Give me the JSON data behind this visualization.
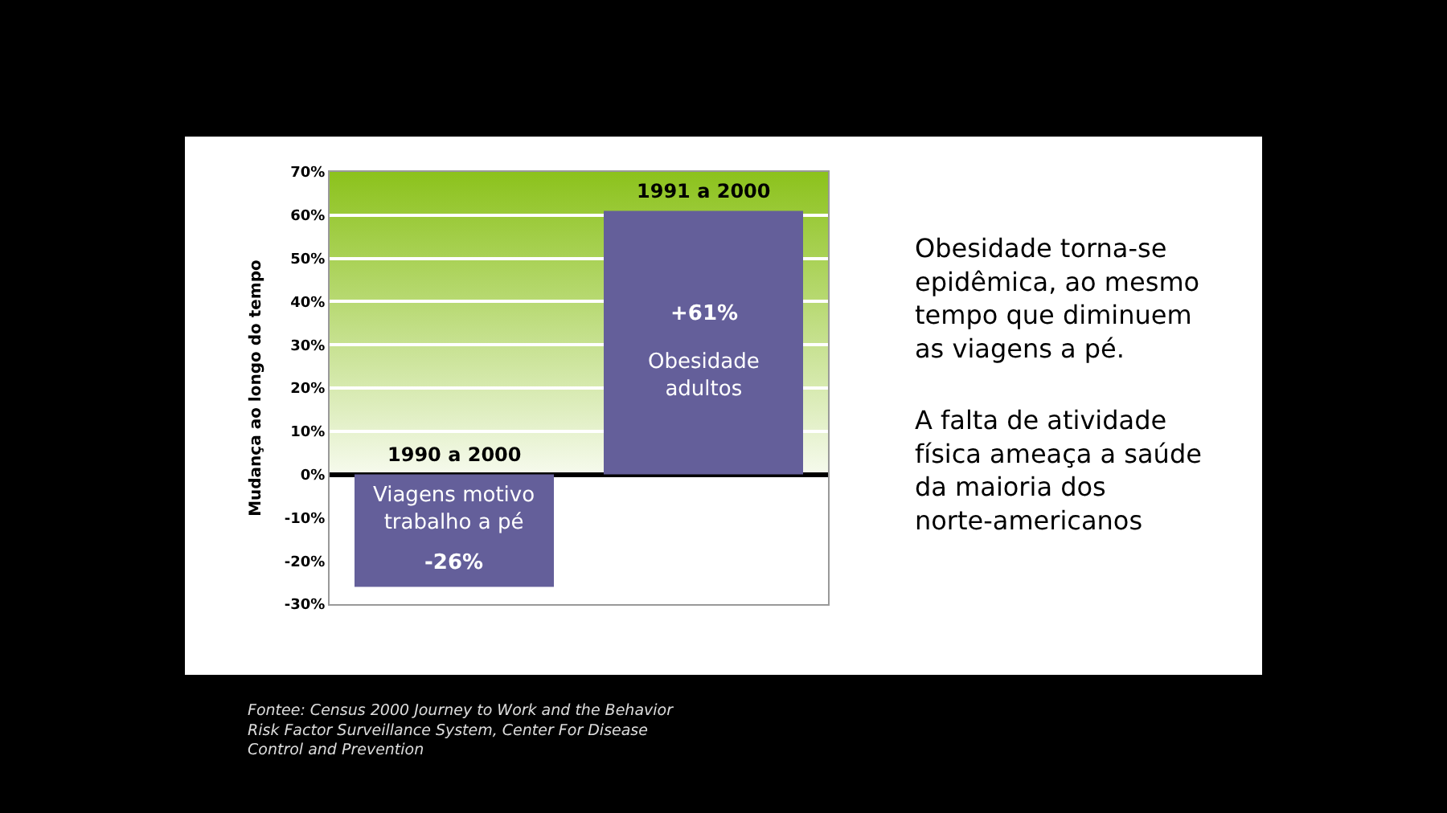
{
  "chart_data": {
    "type": "bar",
    "ylabel": "Mudança ao longo do tempo",
    "categories": [
      "1990 a 2000",
      "1991 a 2000"
    ],
    "values": [
      -26,
      61
    ],
    "color": "#645f9a",
    "value_labels": [
      "-26%",
      "+61%"
    ],
    "ylim": [
      -30,
      70
    ],
    "yticks": [
      {
        "value": -30,
        "label": "-30%"
      },
      {
        "value": -20,
        "label": "-20%"
      },
      {
        "value": -10,
        "label": "-10%"
      },
      {
        "value": 0,
        "label": "0%"
      },
      {
        "value": 10,
        "label": "10%"
      },
      {
        "value": 20,
        "label": "20%"
      },
      {
        "value": 30,
        "label": "30%"
      },
      {
        "value": 40,
        "label": "40%"
      },
      {
        "value": 50,
        "label": "50%"
      },
      {
        "value": 60,
        "label": "60%"
      },
      {
        "value": 70,
        "label": "70%"
      }
    ],
    "grid": "y",
    "tick_labels": "y",
    "bands": [
      {
        "axis": "y",
        "from": 0,
        "to": 70,
        "color": "#8cc21c"
      }
    ],
    "annotations": [
      "Viagens motivo trabalho a pé",
      "Obesidade adultos",
      "Obesidade torna-se epidêmica, ao mesmo tempo que diminuem as viagens a pé.",
      "A falta de atividade física ameaça a saúde da maioria dos norte-americanos",
      "Fontee: Census 2000 Journey to Work and the Behavior Risk Factor Surveillance System, Center For Disease Control and Prevention"
    ]
  }
}
